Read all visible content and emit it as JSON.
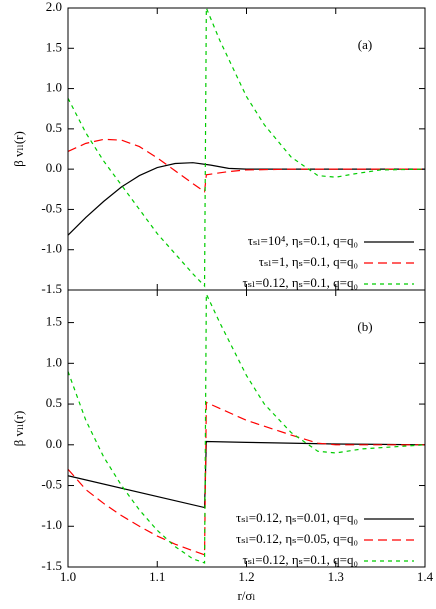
{
  "chart_data": [
    {
      "type": "line",
      "panel_label": "(a)",
      "ylabel": "β vₗₗ(r)",
      "legend": "lower right",
      "xlim": [
        1.0,
        1.4
      ],
      "xticks": [
        1,
        1.1,
        1.2,
        1.3,
        1.4
      ],
      "ylim": [
        -1.5,
        2.0
      ],
      "yticks": [
        {
          "value": 2.0,
          "label": "2.0"
        },
        1.5,
        {
          "value": 1.0,
          "label": "1.0"
        },
        0.5,
        {
          "value": 0.0,
          "label": "0.0"
        },
        -0.5,
        {
          "value": -1.0,
          "label": "-1.0"
        },
        -1.5
      ],
      "series": [
        {
          "name": "τₛₗ=10⁴, ηₛ=0.1, q=q₀",
          "color": "#000000",
          "dash": "solid",
          "x": [
            1.0,
            1.02,
            1.04,
            1.06,
            1.08,
            1.1,
            1.12,
            1.14,
            1.16,
            1.18,
            1.2,
            1.25,
            1.3,
            1.4
          ],
          "values": [
            -0.82,
            -0.6,
            -0.4,
            -0.22,
            -0.08,
            0.02,
            0.07,
            0.08,
            0.05,
            0.01,
            0.0,
            0.0,
            0.0,
            0.0
          ]
        },
        {
          "name": "τₛₗ=1, ηₛ=0.1, q=q₀",
          "color": "#ff0000",
          "dash": "long",
          "x": [
            1.0,
            1.02,
            1.04,
            1.06,
            1.08,
            1.1,
            1.12,
            1.14,
            1.153,
            1.155,
            1.18,
            1.2,
            1.25,
            1.4
          ],
          "values": [
            0.22,
            0.32,
            0.37,
            0.36,
            0.28,
            0.14,
            -0.02,
            -0.18,
            -0.28,
            -0.07,
            -0.03,
            -0.01,
            0.0,
            0.0
          ]
        },
        {
          "name": "τₛₗ=0.12, ηₛ=0.1, q=q₀",
          "color": "#00cc00",
          "dash": "short",
          "x": [
            1.0,
            1.02,
            1.04,
            1.06,
            1.08,
            1.1,
            1.12,
            1.14,
            1.153,
            1.155,
            1.17,
            1.2,
            1.22,
            1.25,
            1.28,
            1.3,
            1.32,
            1.35,
            1.4
          ],
          "values": [
            0.88,
            0.45,
            0.1,
            -0.2,
            -0.5,
            -0.8,
            -1.05,
            -1.3,
            -1.45,
            2.0,
            1.6,
            0.9,
            0.55,
            0.15,
            -0.08,
            -0.1,
            -0.06,
            -0.01,
            0.0
          ]
        }
      ]
    },
    {
      "type": "line",
      "panel_label": "(b)",
      "ylabel": "β vₗₗ(r)",
      "xlabel": "r/σₗ",
      "legend": "lower right",
      "xlim": [
        1.0,
        1.4
      ],
      "xticks": [
        {
          "value": 1.0,
          "label": "1.0"
        },
        1.1,
        1.2,
        1.3,
        {
          "value": 1.4,
          "label": "1.4"
        }
      ],
      "ylim": [
        -1.5,
        1.9
      ],
      "yticks": [
        1.5,
        {
          "value": 1.0,
          "label": "1.0"
        },
        0.5,
        {
          "value": 0.0,
          "label": "0.0"
        },
        -0.5,
        {
          "value": -1.0,
          "label": "-1.0"
        },
        -1.5
      ],
      "series": [
        {
          "name": "τₛₗ=0.12, ηₛ=0.01, q=q₀",
          "color": "#000000",
          "dash": "solid",
          "x": [
            1.0,
            1.153,
            1.155,
            1.2,
            1.3,
            1.4
          ],
          "values": [
            -0.38,
            -0.77,
            0.04,
            0.03,
            0.01,
            0.0
          ]
        },
        {
          "name": "τₛₗ=0.12, ηₛ=0.05, q=q₀",
          "color": "#ff0000",
          "dash": "long",
          "x": [
            1.0,
            1.02,
            1.04,
            1.06,
            1.08,
            1.1,
            1.12,
            1.14,
            1.153,
            1.155,
            1.2,
            1.25,
            1.28,
            1.3,
            1.4
          ],
          "values": [
            -0.3,
            -0.55,
            -0.72,
            -0.87,
            -1.0,
            -1.12,
            -1.22,
            -1.3,
            -1.35,
            0.52,
            0.3,
            0.12,
            0.02,
            0.0,
            0.0
          ]
        },
        {
          "name": "τₛₗ=0.12, ηₛ=0.1, q=q₀",
          "color": "#00cc00",
          "dash": "short",
          "x": [
            1.0,
            1.02,
            1.04,
            1.06,
            1.08,
            1.1,
            1.12,
            1.14,
            1.153,
            1.155,
            1.17,
            1.2,
            1.22,
            1.25,
            1.28,
            1.3,
            1.33,
            1.4
          ],
          "values": [
            0.9,
            0.3,
            -0.15,
            -0.5,
            -0.8,
            -1.05,
            -1.25,
            -1.4,
            -1.45,
            1.85,
            1.5,
            0.85,
            0.5,
            0.15,
            -0.08,
            -0.1,
            -0.05,
            0.0
          ]
        }
      ]
    }
  ]
}
